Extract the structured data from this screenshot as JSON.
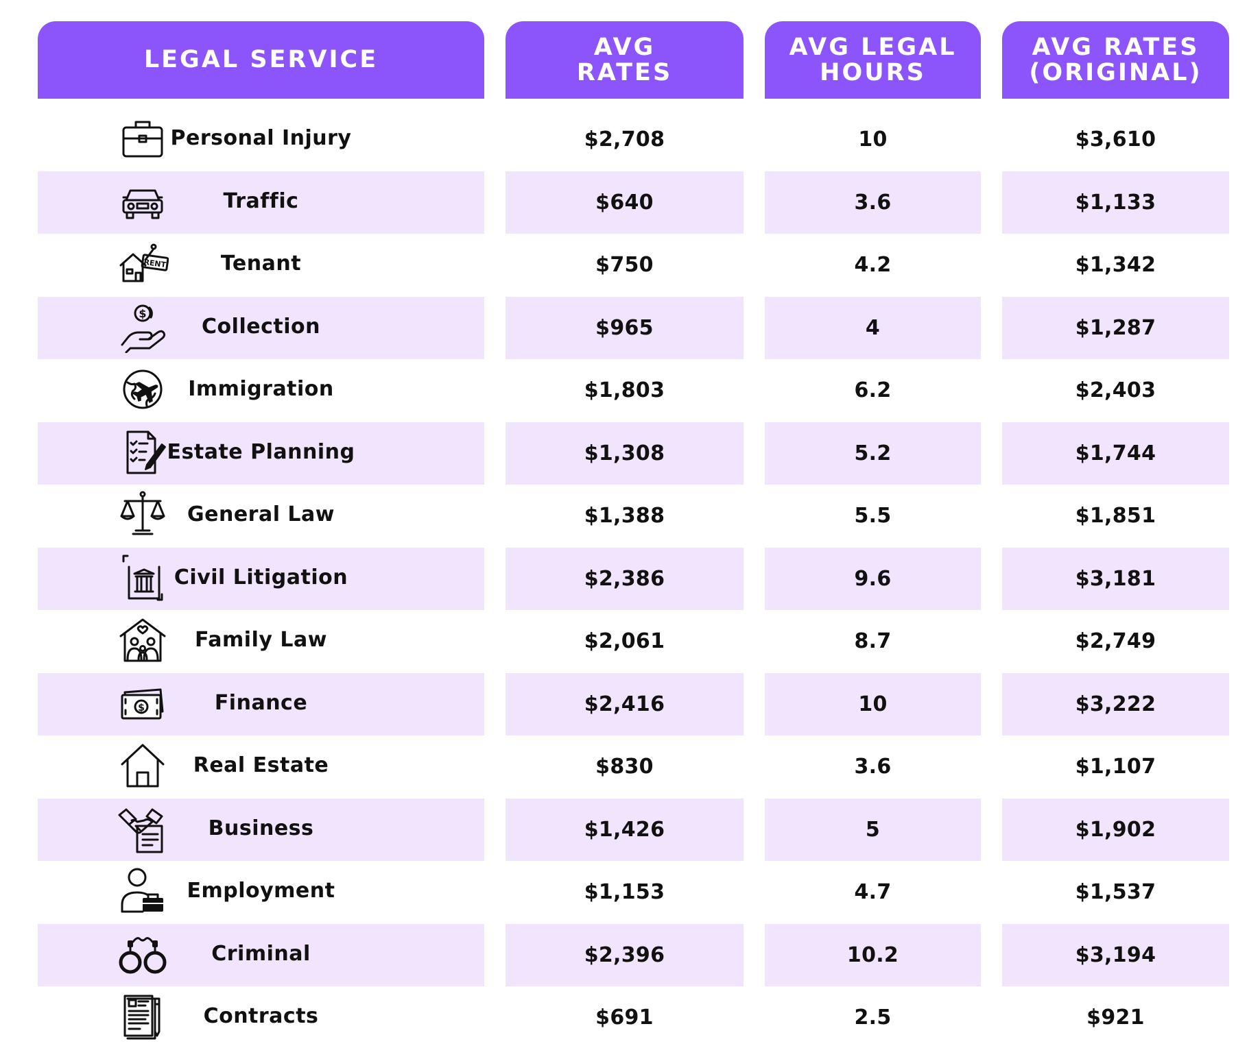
{
  "chart_data": {
    "type": "table",
    "columns": [
      "LEGAL SERVICE",
      "AVG RATES",
      "AVG LEGAL HOURS",
      "AVG RATES (ORIGINAL)"
    ],
    "header_lines": [
      [
        "LEGAL SERVICE"
      ],
      [
        "AVG",
        "RATES"
      ],
      [
        "AVG LEGAL",
        "HOURS"
      ],
      [
        "AVG RATES",
        "(ORIGINAL)"
      ]
    ],
    "rows": [
      {
        "service": "Personal Injury",
        "icon": "briefcase-icon",
        "avg_rate": "$2,708",
        "avg_hours": "10",
        "avg_rate_original": "$3,610"
      },
      {
        "service": "Traffic",
        "icon": "car-icon",
        "avg_rate": "$640",
        "avg_hours": "3.6",
        "avg_rate_original": "$1,133"
      },
      {
        "service": "Tenant",
        "icon": "house-rent-sign-icon",
        "icon_text": "RENT",
        "avg_rate": "$750",
        "avg_hours": "4.2",
        "avg_rate_original": "$1,342"
      },
      {
        "service": "Collection",
        "icon": "hand-dollar-coin-icon",
        "avg_rate": "$965",
        "avg_hours": "4",
        "avg_rate_original": "$1,287"
      },
      {
        "service": "Immigration",
        "icon": "globe-airplane-icon",
        "avg_rate": "$1,803",
        "avg_hours": "6.2",
        "avg_rate_original": "$2,403"
      },
      {
        "service": "Estate Planning",
        "icon": "checklist-pen-icon",
        "avg_rate": "$1,308",
        "avg_hours": "5.2",
        "avg_rate_original": "$1,744"
      },
      {
        "service": "General Law",
        "icon": "scales-of-justice-icon",
        "avg_rate": "$1,388",
        "avg_hours": "5.5",
        "avg_rate_original": "$1,851"
      },
      {
        "service": "Civil Litigation",
        "icon": "courthouse-document-icon",
        "avg_rate": "$2,386",
        "avg_hours": "9.6",
        "avg_rate_original": "$3,181"
      },
      {
        "service": "Family Law",
        "icon": "family-house-icon",
        "avg_rate": "$2,061",
        "avg_hours": "8.7",
        "avg_rate_original": "$2,749"
      },
      {
        "service": "Finance",
        "icon": "banknote-icon",
        "avg_rate": "$2,416",
        "avg_hours": "10",
        "avg_rate_original": "$3,222"
      },
      {
        "service": "Real Estate",
        "icon": "house-icon",
        "avg_rate": "$830",
        "avg_hours": "3.6",
        "avg_rate_original": "$1,107"
      },
      {
        "service": "Business",
        "icon": "handshake-contract-icon",
        "avg_rate": "$1,426",
        "avg_hours": "5",
        "avg_rate_original": "$1,902"
      },
      {
        "service": "Employment",
        "icon": "person-briefcase-icon",
        "avg_rate": "$1,153",
        "avg_hours": "4.7",
        "avg_rate_original": "$1,537"
      },
      {
        "service": "Criminal",
        "icon": "handcuffs-icon",
        "avg_rate": "$2,396",
        "avg_hours": "10.2",
        "avg_rate_original": "$3,194"
      },
      {
        "service": "Contracts",
        "icon": "contract-pen-icon",
        "avg_rate": "$691",
        "avg_hours": "2.5",
        "avg_rate_original": "$921"
      }
    ],
    "striped_rows": "alternate rows shaded, starting from the second row"
  },
  "colors": {
    "header_bg": "#8c55fb",
    "header_text": "#ffffff",
    "band_bg": "#f0e5fc",
    "body_text": "#111111"
  }
}
